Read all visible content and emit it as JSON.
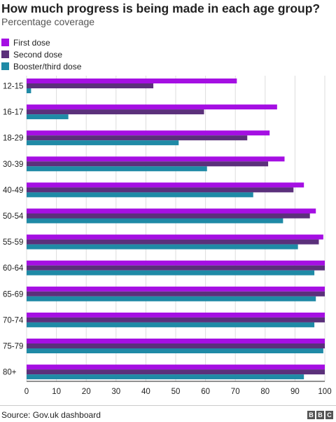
{
  "header": {
    "title": "How much progress is being made in each age group?",
    "subtitle": "Percentage coverage"
  },
  "footer": {
    "source": "Source: Gov.uk dashboard",
    "logo": "BBC"
  },
  "chart_data": {
    "type": "bar",
    "orientation": "horizontal",
    "categories": [
      "12-15",
      "16-17",
      "18-29",
      "30-39",
      "40-49",
      "50-54",
      "55-59",
      "60-64",
      "65-69",
      "70-74",
      "75-79",
      "80+"
    ],
    "series": [
      {
        "name": "First dose",
        "color": "#a50fe3",
        "values": [
          70.5,
          84,
          81.5,
          86.5,
          93,
          97,
          99.5,
          100,
          100,
          100,
          100,
          100
        ]
      },
      {
        "name": "Second dose",
        "color": "#5b307b",
        "values": [
          42.5,
          59.5,
          74,
          81,
          89.5,
          95,
          98,
          100,
          100,
          100,
          100,
          100
        ]
      },
      {
        "name": "Booster/third dose",
        "color": "#1f8aa6",
        "values": [
          1.5,
          14,
          51,
          60.5,
          76,
          86,
          91,
          96.5,
          97,
          96.5,
          99.5,
          93
        ]
      }
    ],
    "xlim": [
      0,
      100
    ],
    "xticks": [
      "0",
      "10",
      "20",
      "30",
      "40",
      "50",
      "60",
      "70",
      "80",
      "90",
      "100"
    ],
    "grid": true,
    "legend_position": "top-left"
  }
}
